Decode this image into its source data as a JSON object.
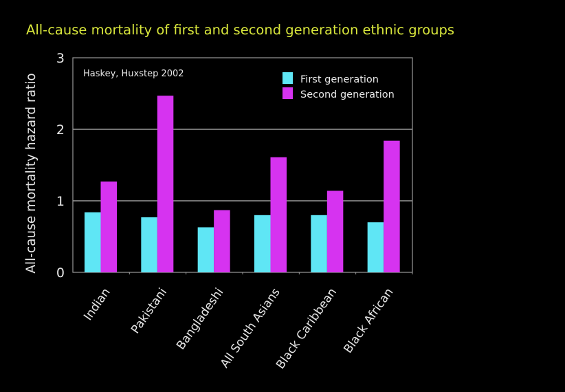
{
  "chart_data": {
    "type": "bar",
    "title": "All-cause mortality of first and second generation ethnic groups",
    "ylabel": "All-cause mortality hazard ratio",
    "xlabel": "",
    "annotation": "Haskey, Huxstep 2002",
    "ylim": [
      0,
      3
    ],
    "yticks": [
      "0",
      "1",
      "2",
      "3"
    ],
    "grid": true,
    "legend_position": "top-right",
    "categories": [
      "Indian",
      "Pakistani",
      "Bangladeshi",
      "All South Asians",
      "Black Caribbean",
      "Black African"
    ],
    "series": [
      {
        "name": "First generation",
        "color": "#5fe6f5",
        "values": [
          0.84,
          0.77,
          0.63,
          0.8,
          0.8,
          0.7
        ]
      },
      {
        "name": "Second generation",
        "color": "#d633f0",
        "values": [
          1.27,
          2.47,
          0.87,
          1.61,
          1.14,
          1.84
        ]
      }
    ],
    "colors": {
      "title": "#d8e63c",
      "text": "#e6e6e6",
      "grid": "#9a9a9a",
      "background": "#000000"
    }
  }
}
